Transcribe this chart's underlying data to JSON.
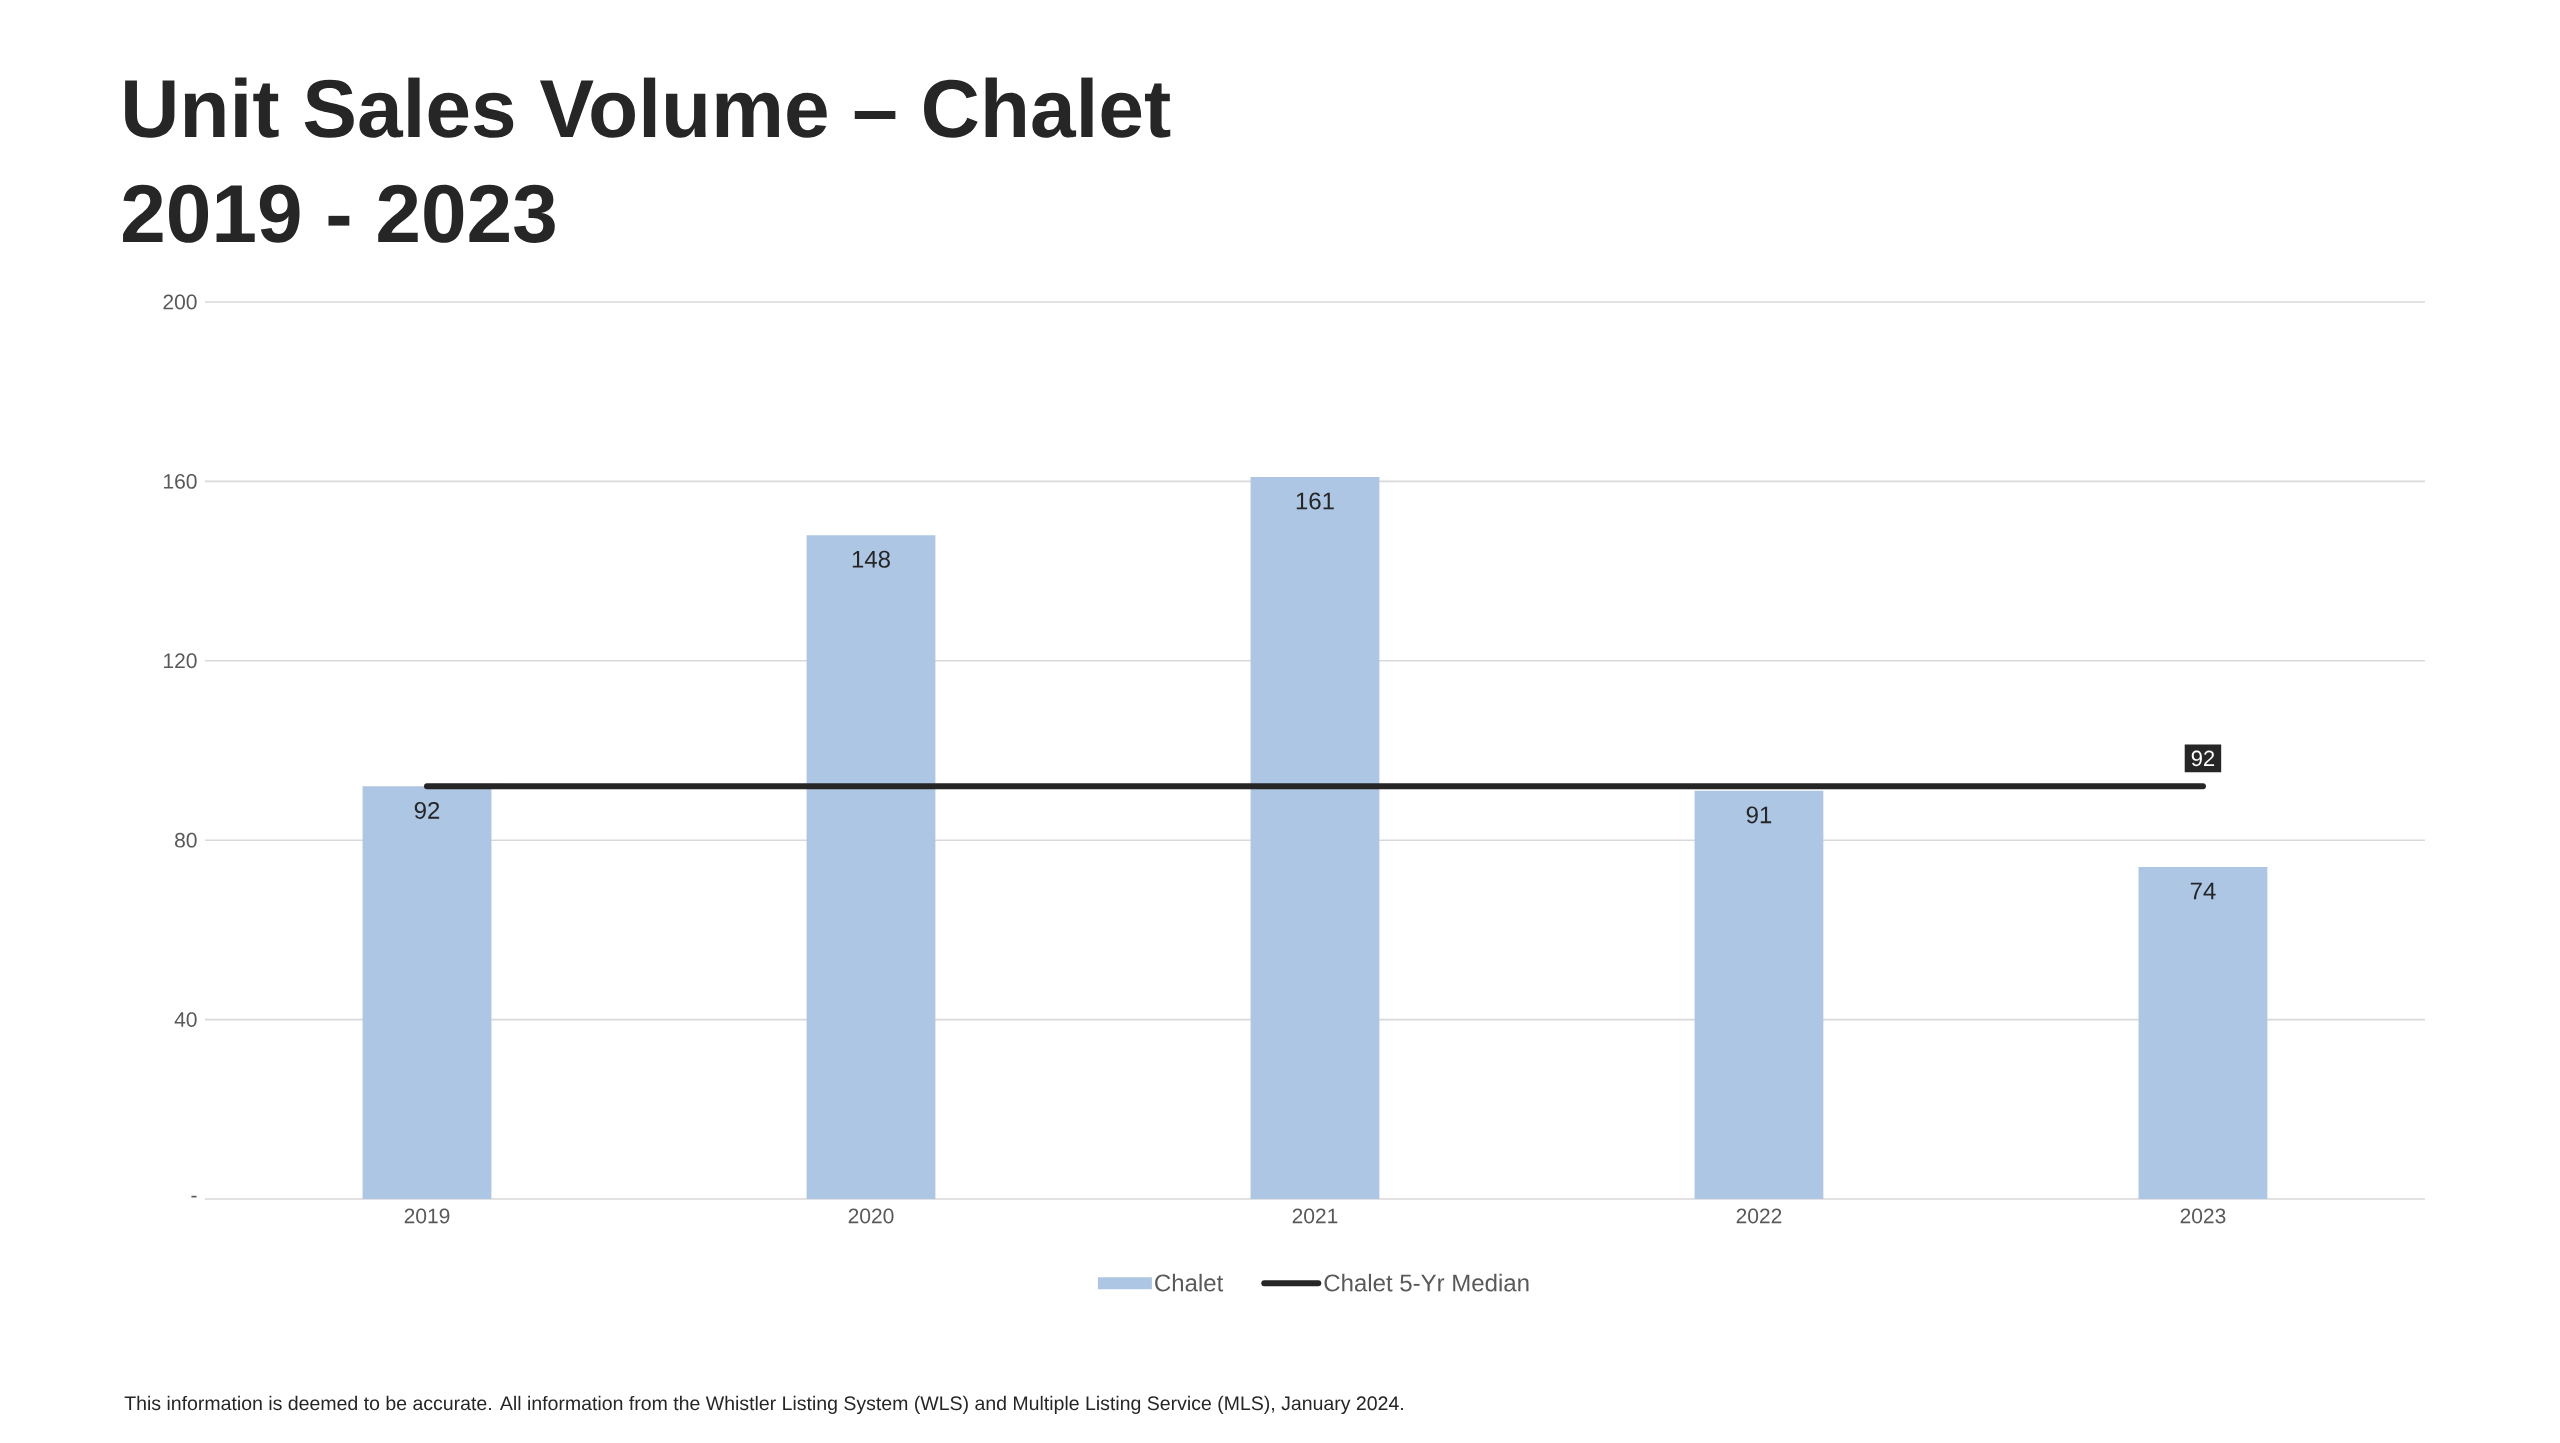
{
  "chart_data": {
    "type": "bar",
    "title": "Unit Sales Volume – Chalet",
    "subtitle": "2019 - 2023",
    "categories": [
      "2019",
      "2020",
      "2021",
      "2022",
      "2023"
    ],
    "series": [
      {
        "name": "Chalet",
        "color": "#adc6e3",
        "values": [
          92,
          148,
          161,
          91,
          74
        ],
        "value_labels": [
          "92",
          "148",
          "161",
          "91",
          "74"
        ]
      },
      {
        "name": "Chalet 5-Yr Median",
        "type": "line",
        "color": "#262626",
        "values": [
          92,
          92,
          92,
          92,
          92
        ],
        "value_labels": [
          null,
          null,
          null,
          null,
          "92"
        ]
      }
    ],
    "ylim": [
      0,
      200
    ],
    "yticks": [
      {
        "value": 0,
        "label": "-"
      },
      40,
      80,
      120,
      160,
      200
    ],
    "grid": "y",
    "legend": "bottom",
    "line_style": "solid",
    "annotations": [
      "This information is deemed to be accurate. All information from the Whistler Listing System (WLS) and Multiple Listing Service (MLS), January 2024."
    ]
  }
}
